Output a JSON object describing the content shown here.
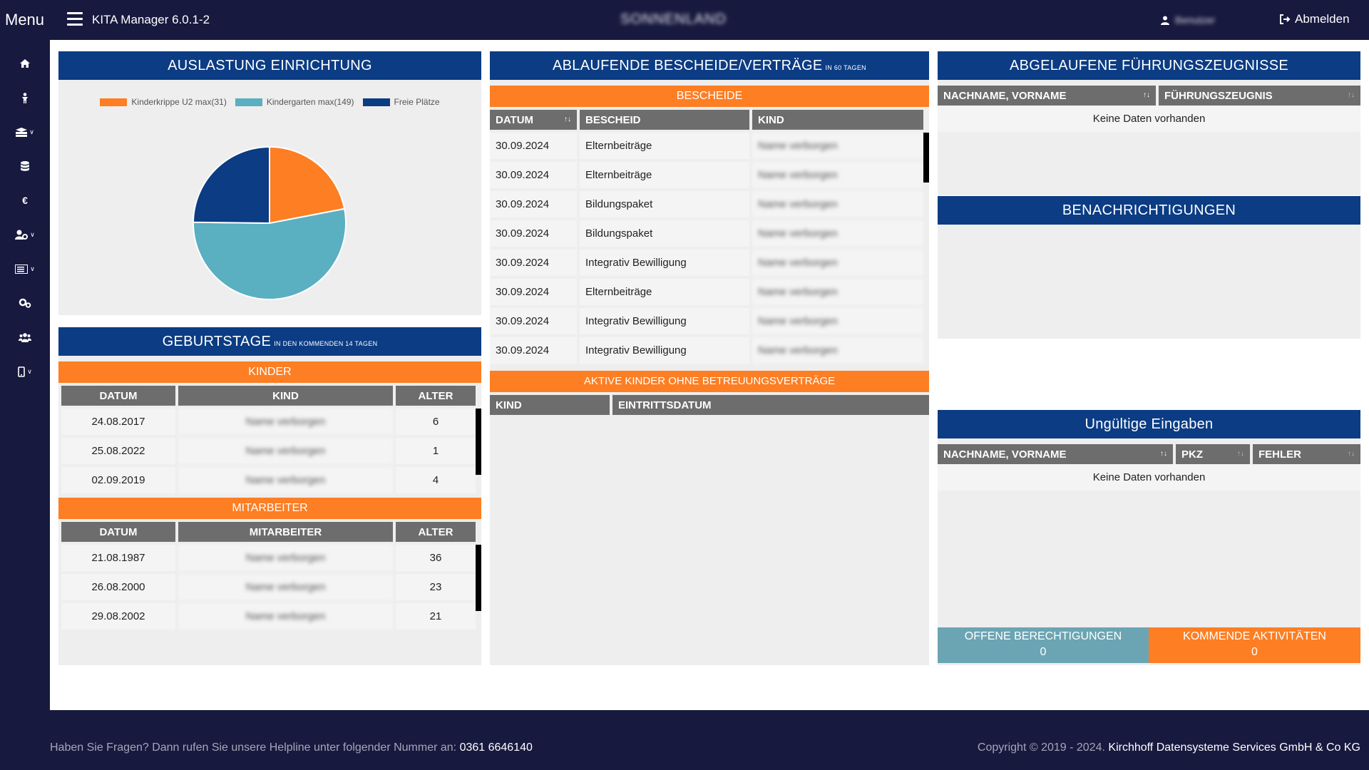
{
  "header": {
    "menu_label": "Menu",
    "app_title": "KITA Manager 6.0.1-2",
    "org_name": "SONNENLAND",
    "user_name": "Benutzer",
    "logout_label": "Abmelden"
  },
  "sidebar": {
    "items": [
      {
        "icon": "home-icon"
      },
      {
        "icon": "child-icon"
      },
      {
        "icon": "groups-icon"
      },
      {
        "icon": "database-icon"
      },
      {
        "icon": "euro-icon"
      },
      {
        "icon": "user-settings-icon"
      },
      {
        "icon": "list-icon"
      },
      {
        "icon": "settings-icon"
      },
      {
        "icon": "staff-icon"
      },
      {
        "icon": "mobile-icon"
      }
    ]
  },
  "auslastung": {
    "title": "AUSLASTUNG EINRICHTUNG",
    "chart_data": {
      "type": "pie",
      "title": "",
      "legend": [
        "Kinderkrippe U2 max(31)",
        "Kindergarten max(149)",
        "Freie Plätze"
      ],
      "values": [
        31,
        75,
        35
      ],
      "colors": [
        "#fd7e23",
        "#5aafc1",
        "#0b3c84"
      ],
      "legend_position": "top"
    }
  },
  "geburtstage": {
    "title": "GEBURTSTAGE",
    "subtitle": "IN DEN KOMMENDEN 14 TAGEN",
    "kinder": {
      "label": "KINDER",
      "headers": [
        "DATUM",
        "KIND",
        "ALTER"
      ],
      "rows": [
        {
          "datum": "24.08.2017",
          "kind": "Name verborgen",
          "alter": "6"
        },
        {
          "datum": "25.08.2022",
          "kind": "Name verborgen",
          "alter": "1"
        },
        {
          "datum": "02.09.2019",
          "kind": "Name verborgen",
          "alter": "4"
        }
      ]
    },
    "mitarbeiter": {
      "label": "MITARBEITER",
      "headers": [
        "DATUM",
        "MITARBEITER",
        "ALTER"
      ],
      "rows": [
        {
          "datum": "21.08.1987",
          "name": "Name verborgen",
          "alter": "36"
        },
        {
          "datum": "26.08.2000",
          "name": "Name verborgen",
          "alter": "23"
        },
        {
          "datum": "29.08.2002",
          "name": "Name verborgen",
          "alter": "21"
        }
      ]
    }
  },
  "ablaufende": {
    "title": "ABLAUFENDE BESCHEIDE/VERTRÄGE",
    "subtitle": "IN 60 TAGEN",
    "bescheide_label": "BESCHEIDE",
    "headers": [
      "DATUM",
      "BESCHEID",
      "KIND"
    ],
    "rows": [
      {
        "datum": "30.09.2024",
        "bescheid": "Elternbeiträge",
        "kind": "Name verborgen"
      },
      {
        "datum": "30.09.2024",
        "bescheid": "Elternbeiträge",
        "kind": "Name verborgen"
      },
      {
        "datum": "30.09.2024",
        "bescheid": "Bildungspaket",
        "kind": "Name verborgen"
      },
      {
        "datum": "30.09.2024",
        "bescheid": "Bildungspaket",
        "kind": "Name verborgen"
      },
      {
        "datum": "30.09.2024",
        "bescheid": "Integrativ Bewilligung",
        "kind": "Name verborgen"
      },
      {
        "datum": "30.09.2024",
        "bescheid": "Elternbeiträge",
        "kind": "Name verborgen"
      },
      {
        "datum": "30.09.2024",
        "bescheid": "Integrativ Bewilligung",
        "kind": "Name verborgen"
      },
      {
        "datum": "30.09.2024",
        "bescheid": "Integrativ Bewilligung",
        "kind": "Name verborgen"
      }
    ],
    "aktive_label": "AKTIVE KINDER OHNE BETREUUNGSVERTRÄGE",
    "aktive_headers": [
      "KIND",
      "EINTRITTSDATUM"
    ]
  },
  "fuehrungszeugnisse": {
    "title": "ABGELAUFENE FÜHRUNGSZEUGNISSE",
    "headers": [
      "NACHNAME, VORNAME",
      "FÜHRUNGSZEUGNIS"
    ],
    "empty": "Keine Daten vorhanden"
  },
  "benachrichtigungen": {
    "title": "BENACHRICHTIGUNGEN"
  },
  "ungueltig": {
    "title": "Ungültige Eingaben",
    "headers": [
      "NACHNAME, VORNAME",
      "PKZ",
      "FEHLER"
    ],
    "empty": "Keine Daten vorhanden"
  },
  "stats": {
    "offene_label": "OFFENE BERECHTIGUNGEN",
    "offene_value": "0",
    "offene_color": "#6ba5b3",
    "kommende_label": "KOMMENDE AKTIVITÄTEN",
    "kommende_value": "0",
    "kommende_color": "#fd7e23"
  },
  "footer": {
    "help_text": "Haben Sie Fragen? Dann rufen Sie unsere Helpline unter folgender Nummer an:",
    "phone": "0361 6646140",
    "copyright": "Copyright © 2019 - 2024.",
    "company": "Kirchhoff Datensysteme Services GmbH & Co KG"
  }
}
